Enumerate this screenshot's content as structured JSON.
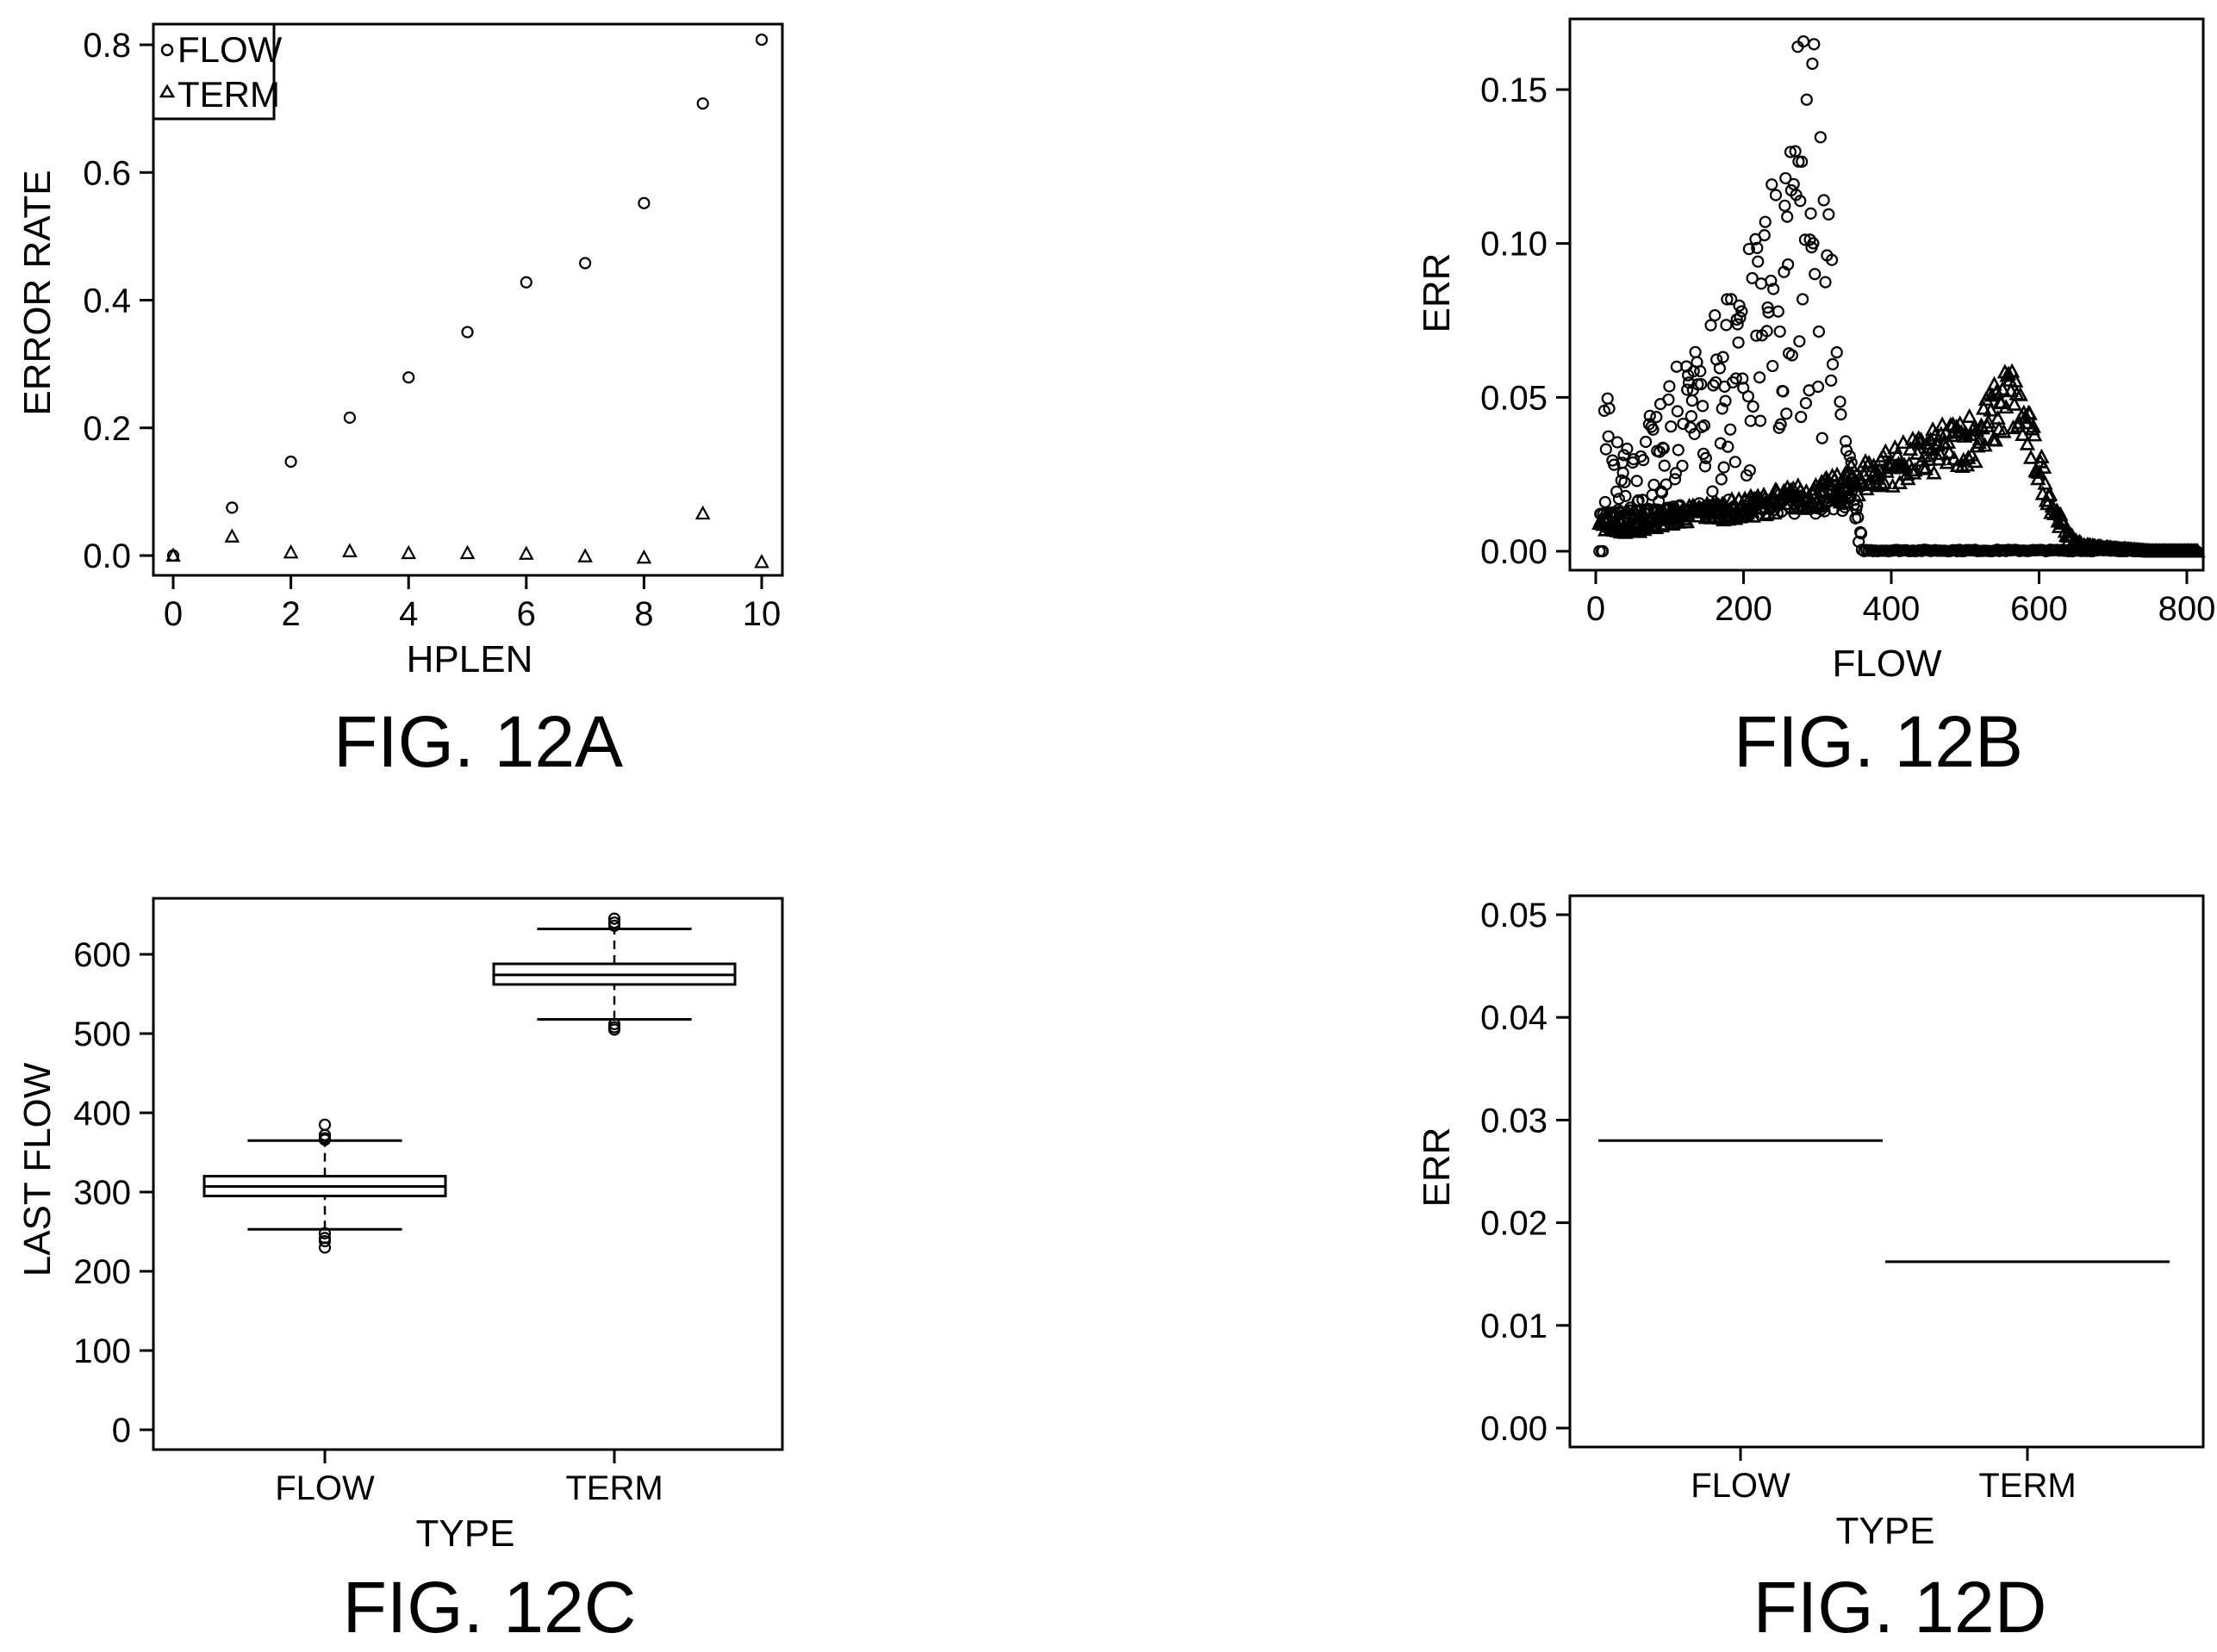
{
  "chart_data": [
    {
      "id": "12A",
      "type": "scatter",
      "caption": "FIG. 12A",
      "xlabel": "HPLEN",
      "ylabel": "ERROR RATE",
      "xlim": [
        0,
        10
      ],
      "ylim": [
        0,
        0.8
      ],
      "xticks": [
        "0",
        "2",
        "4",
        "6",
        "8",
        "10"
      ],
      "yticks": [
        "0.0",
        "0.2",
        "0.4",
        "0.6",
        "0.8"
      ],
      "legend": {
        "placement": "top-left",
        "entries": [
          {
            "label": "FLOW",
            "marker": "circle"
          },
          {
            "label": "TERM",
            "marker": "triangle"
          }
        ]
      },
      "series": [
        {
          "name": "FLOW",
          "marker": "circle",
          "x": [
            0,
            1,
            2,
            3,
            4,
            5,
            6,
            7,
            8,
            9,
            10
          ],
          "y": [
            0.0,
            0.075,
            0.147,
            0.216,
            0.279,
            0.35,
            0.428,
            0.458,
            0.552,
            0.708,
            0.808
          ]
        },
        {
          "name": "TERM",
          "marker": "triangle",
          "x": [
            0,
            1,
            2,
            3,
            4,
            5,
            6,
            7,
            8,
            9,
            10
          ],
          "y": [
            0.0,
            0.03,
            0.005,
            0.007,
            0.004,
            0.004,
            0.003,
            -0.001,
            -0.003,
            0.066,
            -0.01
          ]
        }
      ]
    },
    {
      "id": "12B",
      "type": "scatter",
      "caption": "FIG. 12B",
      "xlabel": "FLOW",
      "ylabel": "ERR",
      "xlim": [
        -20,
        820
      ],
      "ylim": [
        -0.01,
        0.17
      ],
      "xticks": [
        "0",
        "200",
        "400",
        "600",
        "800"
      ],
      "yticks": [
        "0.00",
        "0.05",
        "0.10",
        "0.15"
      ],
      "series": [
        {
          "name": "",
          "marker": "circle",
          "description_shape": "cloud rising from ~0.02 at flow 0 to ~0.17 near flow 290, falling to ~0 by flow 370, flat near 0 to flow 820",
          "x": [
            10,
            20,
            30,
            40,
            50,
            60,
            70,
            80,
            90,
            100,
            120,
            140,
            160,
            180,
            200,
            220,
            240,
            260,
            270,
            280,
            290,
            300,
            310,
            320,
            330,
            340,
            350,
            360,
            380,
            400,
            450,
            500,
            550,
            600,
            650,
            700,
            750,
            800,
            815
          ],
          "y": [
            0.058,
            0.045,
            0.035,
            0.04,
            0.03,
            0.04,
            0.045,
            0.04,
            0.05,
            0.055,
            0.06,
            0.065,
            0.075,
            0.085,
            0.095,
            0.11,
            0.12,
            0.13,
            0.155,
            0.165,
            0.17,
            0.15,
            0.12,
            0.09,
            0.06,
            0.04,
            0.02,
            0.005,
            0.001,
            0.0,
            0.0,
            0.0,
            0.0,
            0.0,
            0.0,
            0.0,
            0.0,
            0.0,
            0.0
          ]
        },
        {
          "name": "",
          "marker": "triangle",
          "description_shape": "dense band rising from ~0.01 at flow 0 to ~0.05 near flow 560, dropping to ~0 by flow 650, flat near 0 to flow 820",
          "x": [
            5,
            50,
            100,
            150,
            200,
            250,
            300,
            330,
            350,
            380,
            400,
            430,
            460,
            490,
            520,
            540,
            560,
            580,
            600,
            620,
            640,
            660,
            700,
            750,
            800,
            815
          ],
          "y": [
            0.01,
            0.008,
            0.012,
            0.014,
            0.015,
            0.018,
            0.02,
            0.022,
            0.025,
            0.028,
            0.03,
            0.032,
            0.035,
            0.038,
            0.042,
            0.048,
            0.055,
            0.045,
            0.03,
            0.015,
            0.005,
            0.002,
            0.001,
            0.0,
            0.0,
            0.0
          ]
        }
      ]
    },
    {
      "id": "12C",
      "type": "box",
      "caption": "FIG. 12C",
      "xlabel": "TYPE",
      "ylabel": "LAST FLOW",
      "ylim": [
        -20,
        660
      ],
      "yticks": [
        "0",
        "100",
        "200",
        "300",
        "400",
        "500",
        "600"
      ],
      "categories": [
        "FLOW",
        "TERM"
      ],
      "boxes": [
        {
          "category": "FLOW",
          "whisker_low": 253,
          "q1": 295,
          "median": 307,
          "q3": 320,
          "whisker_high": 365,
          "outliers": [
            385,
            372,
            368,
            366,
            248,
            242,
            238,
            230
          ]
        },
        {
          "category": "TERM",
          "whisker_low": 518,
          "q1": 562,
          "median": 574,
          "q3": 588,
          "whisker_high": 632,
          "outliers": [
            645,
            640,
            636,
            512,
            508,
            505
          ]
        }
      ]
    },
    {
      "id": "12D",
      "type": "box",
      "caption": "FIG. 12D",
      "xlabel": "TYPE",
      "ylabel": "ERR",
      "ylim": [
        -0.002,
        0.052
      ],
      "yticks": [
        "0.00",
        "0.01",
        "0.02",
        "0.03",
        "0.04",
        "0.05"
      ],
      "categories": [
        "FLOW",
        "TERM"
      ],
      "boxes": [
        {
          "category": "FLOW",
          "median": 0.028
        },
        {
          "category": "TERM",
          "median": 0.0162
        }
      ]
    }
  ]
}
